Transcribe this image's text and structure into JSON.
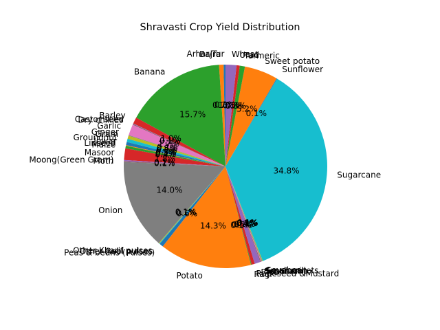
{
  "chart_data": {
    "type": "pie",
    "title": "Shravasti Crop Yield Distribution",
    "start_angle_deg": 90,
    "direction": "counterclockwise",
    "autopct_format": "{:.1f}%",
    "slices": [
      {
        "label": "Arhar/Tur",
        "value": 0.3,
        "color": "#1f77b4"
      },
      {
        "label": "Bajra",
        "value": 0.7,
        "color": "#ff7f0e"
      },
      {
        "label": "Banana",
        "value": 15.7,
        "color": "#2ca02c"
      },
      {
        "label": "Barley",
        "value": 1.0,
        "color": "#d62728"
      },
      {
        "label": "Castor seed",
        "value": 0.1,
        "color": "#9467bd"
      },
      {
        "label": "Dry chillies",
        "value": 0.1,
        "color": "#8c564b"
      },
      {
        "label": "Garlic",
        "value": 1.7,
        "color": "#e377c2"
      },
      {
        "label": "Ginger",
        "value": 0.1,
        "color": "#7f7f7f"
      },
      {
        "label": "Gram",
        "value": 0.5,
        "color": "#bcbd22"
      },
      {
        "label": "Groundnut",
        "value": 0.5,
        "color": "#17becf"
      },
      {
        "label": "Jowar",
        "value": 0.5,
        "color": "#1f77b4"
      },
      {
        "label": "Linseed",
        "value": 0.1,
        "color": "#ff7f0e"
      },
      {
        "label": "Maize",
        "value": 0.4,
        "color": "#2ca02c"
      },
      {
        "label": "Masoor",
        "value": 1.8,
        "color": "#d62728"
      },
      {
        "label": "Moong(Green Gram)",
        "value": 0.2,
        "color": "#9467bd"
      },
      {
        "label": "Moth",
        "value": 0.1,
        "color": "#8c564b"
      },
      {
        "label": "Onion",
        "value": 14.0,
        "color": "#7f7f7f"
      },
      {
        "label": "Other Kharif pulses",
        "value": 0.1,
        "color": "#bcbd22"
      },
      {
        "label": "Other Rabi pulses",
        "value": 0.1,
        "color": "#17becf"
      },
      {
        "label": "Peas & beans (Pulses)",
        "value": 0.6,
        "color": "#1f77b4"
      },
      {
        "label": "Potato",
        "value": 14.3,
        "color": "#ff7f0e"
      },
      {
        "label": "Ragi",
        "value": 0.1,
        "color": "#2ca02c"
      },
      {
        "label": "Rapeseed &Mustard",
        "value": 0.5,
        "color": "#d62728"
      },
      {
        "label": "Rice",
        "value": 0.9,
        "color": "#9467bd"
      },
      {
        "label": "Sannhamp",
        "value": 0.1,
        "color": "#8c564b"
      },
      {
        "label": "Sesamum",
        "value": 0.1,
        "color": "#e377c2"
      },
      {
        "label": "Small millets",
        "value": 0.1,
        "color": "#7f7f7f"
      },
      {
        "label": "Soyabean",
        "value": 0.1,
        "color": "#bcbd22"
      },
      {
        "label": "Sugarcane",
        "value": 34.8,
        "color": "#17becf"
      },
      {
        "label": "Sunflower",
        "value": 0.1,
        "color": "#1f77b4"
      },
      {
        "label": "Sweet potato",
        "value": 5.2,
        "color": "#ff7f0e"
      },
      {
        "label": "Turmeric",
        "value": 0.8,
        "color": "#2ca02c"
      },
      {
        "label": "Urad",
        "value": 0.5,
        "color": "#d62728"
      },
      {
        "label": "Wheat",
        "value": 1.7,
        "color": "#9467bd"
      }
    ]
  }
}
